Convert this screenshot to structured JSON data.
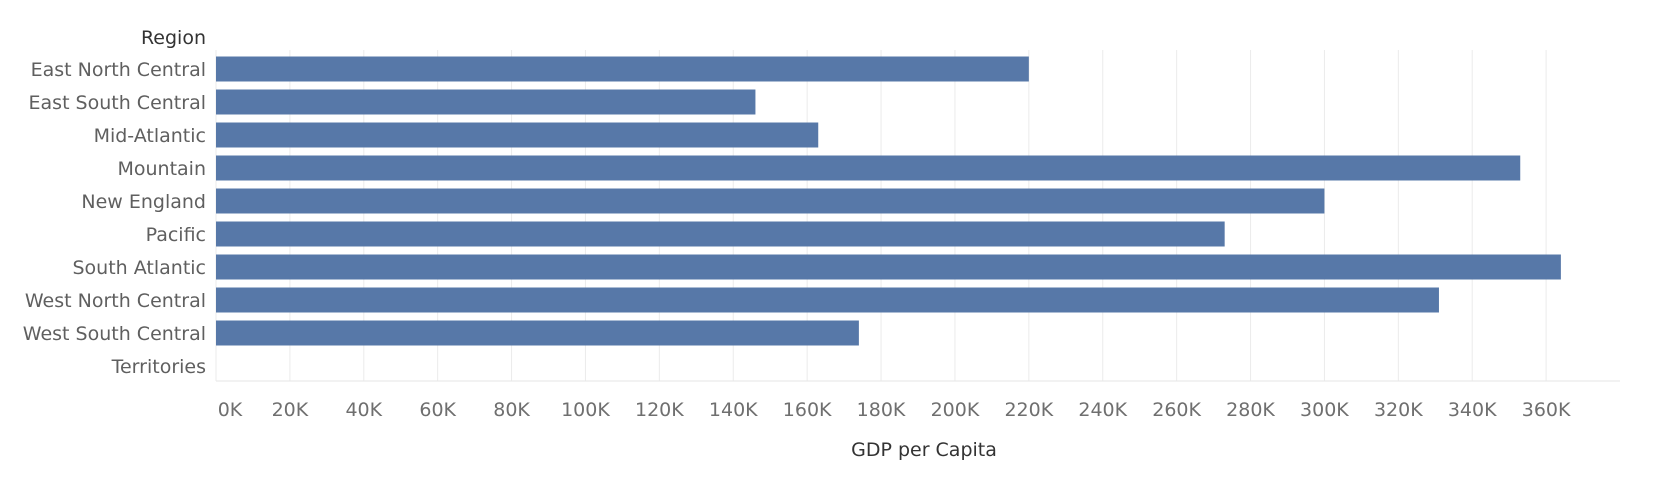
{
  "chart_data": {
    "type": "bar",
    "orientation": "horizontal",
    "row_header": "Region",
    "categories": [
      "East North Central",
      "East South Central",
      "Mid-Atlantic",
      "Mountain",
      "New England",
      "Pacific",
      "South Atlantic",
      "West North Central",
      "West South Central",
      "Territories"
    ],
    "values": [
      220000,
      146000,
      163000,
      353000,
      300000,
      273000,
      364000,
      331000,
      174000,
      null
    ],
    "xlabel": "GDP per Capita",
    "ylabel": "Region",
    "xlim": [
      0,
      380000
    ],
    "ticks": [
      "0K",
      "20K",
      "40K",
      "60K",
      "80K",
      "100K",
      "120K",
      "140K",
      "160K",
      "180K",
      "200K",
      "220K",
      "240K",
      "260K",
      "280K",
      "300K",
      "320K",
      "340K",
      "360K"
    ],
    "grid": true,
    "bar_color": "#5778a8"
  }
}
